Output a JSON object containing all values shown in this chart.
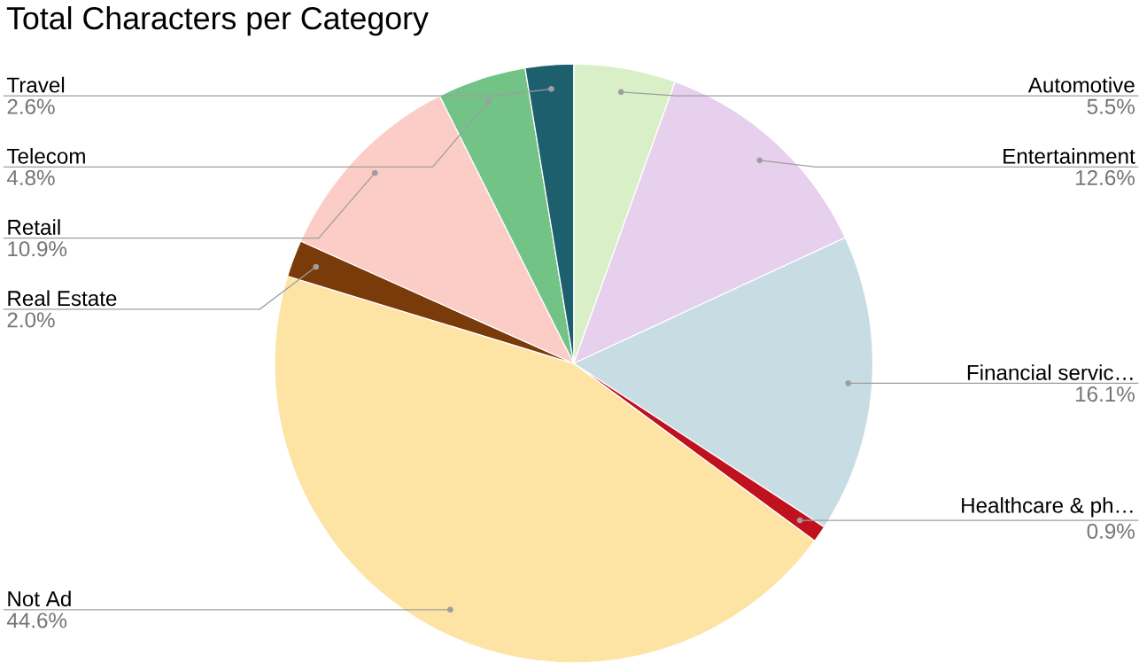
{
  "chart_data": {
    "type": "pie",
    "title": "Total Characters per Category",
    "categories": [
      "Automotive",
      "Entertainment",
      "Financial servic…",
      "Healthcare & ph…",
      "Not Ad",
      "Real Estate",
      "Retail",
      "Telecom",
      "Travel"
    ],
    "values": [
      5.5,
      12.6,
      16.1,
      0.9,
      44.6,
      2.0,
      10.9,
      4.8,
      2.6
    ],
    "value_labels": [
      "5.5%",
      "12.6%",
      "16.1%",
      "0.9%",
      "44.6%",
      "2.0%",
      "10.9%",
      "4.8%",
      "2.6%"
    ],
    "colors": [
      "#d9efc8",
      "#e6d0ee",
      "#c8dce3",
      "#c0111e",
      "#fde4a5",
      "#7a3b0a",
      "#fcccc6",
      "#73c387",
      "#1e5f6e"
    ]
  }
}
